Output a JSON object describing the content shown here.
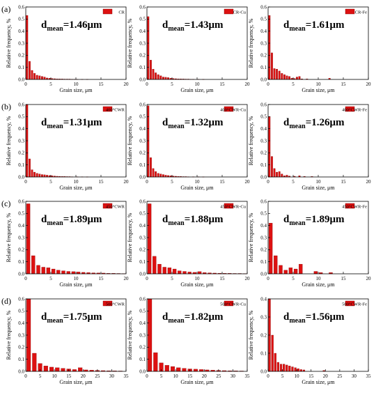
{
  "figure": {
    "row_labels": [
      "(a)",
      "(b)",
      "(c)",
      "(d)"
    ],
    "x_axis_label": "Grain size, μm",
    "y_axis_label": "Relative frequency, %"
  },
  "chart_data": [
    {
      "type": "bar",
      "row": 0,
      "col": 0,
      "legend": "CR",
      "annotation": {
        "prefix": "d",
        "sub": "mean",
        "value": "=1.46μm"
      },
      "xlim": [
        0,
        20
      ],
      "xticks": [
        0,
        5,
        10,
        15,
        20
      ],
      "ylim": [
        0,
        0.6
      ],
      "yticks": [
        0.0,
        0.1,
        0.2,
        0.3,
        0.4,
        0.5,
        0.6
      ],
      "x": [
        0.25,
        0.75,
        1.25,
        1.75,
        2.25,
        2.75,
        3.25,
        3.75,
        4.25,
        4.75,
        5.25,
        5.75,
        6.25,
        6.75,
        7.25,
        7.75,
        8.25,
        8.75,
        9.25,
        9.75,
        10.25,
        11.25,
        12.25
      ],
      "values": [
        0.53,
        0.15,
        0.075,
        0.05,
        0.035,
        0.03,
        0.025,
        0.02,
        0.012,
        0.01,
        0.008,
        0.006,
        0.005,
        0.004,
        0.004,
        0.003,
        0.003,
        0.003,
        0.002,
        0.002,
        0.002,
        0.001,
        0.001
      ]
    },
    {
      "type": "bar",
      "row": 0,
      "col": 1,
      "legend": "CR-Cu",
      "annotation": {
        "prefix": "d",
        "sub": "mean",
        "value": "=1.43μm"
      },
      "xlim": [
        0,
        20
      ],
      "xticks": [
        0,
        5,
        10,
        15,
        20
      ],
      "ylim": [
        0,
        0.6
      ],
      "yticks": [
        0.0,
        0.1,
        0.2,
        0.3,
        0.4,
        0.5,
        0.6
      ],
      "x": [
        0.25,
        0.75,
        1.25,
        1.75,
        2.25,
        2.75,
        3.25,
        3.75,
        4.25,
        4.75,
        5.25,
        5.75,
        6.25,
        6.75,
        7.25,
        7.75,
        8.25,
        8.75,
        9.25,
        10.25,
        11.25
      ],
      "values": [
        0.52,
        0.16,
        0.085,
        0.055,
        0.04,
        0.03,
        0.02,
        0.018,
        0.015,
        0.01,
        0.008,
        0.006,
        0.005,
        0.004,
        0.004,
        0.003,
        0.003,
        0.002,
        0.002,
        0.002,
        0.001
      ]
    },
    {
      "type": "bar",
      "row": 0,
      "col": 2,
      "legend": "CR-Fe",
      "annotation": {
        "prefix": "d",
        "sub": "mean",
        "value": "=1.61μm"
      },
      "xlim": [
        0,
        20
      ],
      "xticks": [
        0,
        5,
        10,
        15,
        20
      ],
      "ylim": [
        0,
        0.6
      ],
      "yticks": [
        0.0,
        0.1,
        0.2,
        0.3,
        0.4,
        0.5,
        0.6
      ],
      "x": [
        0.25,
        0.75,
        1.25,
        1.75,
        2.25,
        2.75,
        3.25,
        3.75,
        4.25,
        4.75,
        5.25,
        5.75,
        6.25,
        6.75,
        7.75,
        12.25
      ],
      "values": [
        0.53,
        0.22,
        0.09,
        0.085,
        0.07,
        0.05,
        0.04,
        0.03,
        0.025,
        0.01,
        0.008,
        0.02,
        0.025,
        0.005,
        0.005,
        0.01
      ]
    },
    {
      "type": "bar",
      "row": 1,
      "col": 0,
      "legend": "400°CWR",
      "annotation": {
        "prefix": "d",
        "sub": "mean",
        "value": "=1.31μm"
      },
      "xlim": [
        0,
        20
      ],
      "xticks": [
        0,
        5,
        10,
        15,
        20
      ],
      "ylim": [
        0,
        0.6
      ],
      "yticks": [
        0.0,
        0.1,
        0.2,
        0.3,
        0.4,
        0.5,
        0.6
      ],
      "x": [
        0.25,
        0.75,
        1.25,
        1.75,
        2.25,
        2.75,
        3.25,
        3.75,
        4.25,
        4.75,
        5.25,
        5.75,
        6.25,
        6.75,
        7.25,
        7.75,
        8.25,
        8.75,
        9.25,
        10.25,
        11.25,
        12.25
      ],
      "values": [
        0.6,
        0.15,
        0.06,
        0.04,
        0.03,
        0.025,
        0.02,
        0.018,
        0.015,
        0.012,
        0.01,
        0.008,
        0.006,
        0.005,
        0.004,
        0.004,
        0.003,
        0.003,
        0.002,
        0.002,
        0.002,
        0.001
      ]
    },
    {
      "type": "bar",
      "row": 1,
      "col": 1,
      "legend": "400°CWR-Cu",
      "annotation": {
        "prefix": "d",
        "sub": "mean",
        "value": "=1.32μm"
      },
      "xlim": [
        0,
        20
      ],
      "xticks": [
        0,
        5,
        10,
        15,
        20
      ],
      "ylim": [
        0,
        0.6
      ],
      "yticks": [
        0.0,
        0.1,
        0.2,
        0.3,
        0.4,
        0.5,
        0.6
      ],
      "x": [
        0.25,
        0.75,
        1.25,
        1.75,
        2.25,
        2.75,
        3.25,
        3.75,
        4.25,
        4.75,
        5.25,
        5.75,
        6.25,
        6.75,
        7.25,
        7.75,
        8.25,
        9.25,
        10.25,
        11.25
      ],
      "values": [
        0.59,
        0.16,
        0.07,
        0.045,
        0.03,
        0.025,
        0.02,
        0.015,
        0.012,
        0.01,
        0.008,
        0.006,
        0.005,
        0.004,
        0.003,
        0.003,
        0.002,
        0.002,
        0.002,
        0.001
      ]
    },
    {
      "type": "bar",
      "row": 1,
      "col": 2,
      "legend": "400°CWR-Fe",
      "annotation": {
        "prefix": "d",
        "sub": "mean",
        "value": "=1.26μm"
      },
      "xlim": [
        0,
        20
      ],
      "xticks": [
        0,
        5,
        10,
        15,
        20
      ],
      "ylim": [
        0,
        0.6
      ],
      "yticks": [
        0.0,
        0.1,
        0.2,
        0.3,
        0.4,
        0.5,
        0.6
      ],
      "x": [
        0.25,
        0.75,
        1.25,
        1.75,
        2.25,
        2.75,
        3.25,
        3.75,
        4.25,
        5.25,
        6.25,
        7.25,
        8.75
      ],
      "values": [
        0.5,
        0.17,
        0.07,
        0.04,
        0.045,
        0.025,
        0.01,
        0.015,
        0.008,
        0.006,
        0.01,
        0.005,
        0.004
      ]
    },
    {
      "type": "bar",
      "row": 2,
      "col": 0,
      "legend": "450°CWR",
      "annotation": {
        "prefix": "d",
        "sub": "mean",
        "value": "=1.89μm"
      },
      "xlim": [
        0,
        20
      ],
      "xticks": [
        0,
        5,
        10,
        15,
        20
      ],
      "ylim": [
        0,
        0.6
      ],
      "yticks": [
        0.0,
        0.1,
        0.2,
        0.3,
        0.4,
        0.5,
        0.6
      ],
      "x": [
        0.5,
        1.5,
        2.5,
        3.5,
        4.5,
        5.5,
        6.5,
        7.5,
        8.5,
        9.5,
        10.5,
        11.5,
        12.5,
        13.5,
        14.5,
        15.5,
        16.5,
        17.5,
        18.5,
        19.5
      ],
      "values": [
        0.58,
        0.15,
        0.07,
        0.055,
        0.05,
        0.04,
        0.03,
        0.025,
        0.02,
        0.018,
        0.015,
        0.012,
        0.01,
        0.008,
        0.007,
        0.006,
        0.004,
        0.004,
        0.003,
        0.002
      ]
    },
    {
      "type": "bar",
      "row": 2,
      "col": 1,
      "legend": "450°CWR-Cu",
      "annotation": {
        "prefix": "d",
        "sub": "mean",
        "value": "=1.88μm"
      },
      "xlim": [
        0,
        20
      ],
      "xticks": [
        0,
        5,
        10,
        15,
        20
      ],
      "ylim": [
        0,
        0.6
      ],
      "yticks": [
        0.0,
        0.1,
        0.2,
        0.3,
        0.4,
        0.5,
        0.6
      ],
      "x": [
        0.5,
        1.5,
        2.5,
        3.5,
        4.5,
        5.5,
        6.5,
        7.5,
        8.5,
        9.5,
        10.5,
        11.5,
        12.5,
        13.5,
        14.5,
        15.5,
        16.5,
        17.5,
        18.5,
        19.5
      ],
      "values": [
        0.58,
        0.145,
        0.08,
        0.055,
        0.05,
        0.04,
        0.025,
        0.02,
        0.015,
        0.012,
        0.018,
        0.01,
        0.008,
        0.006,
        0.005,
        0.004,
        0.004,
        0.003,
        0.003,
        0.002
      ]
    },
    {
      "type": "bar",
      "row": 2,
      "col": 2,
      "legend": "450°CWR-Fe",
      "annotation": {
        "prefix": "d",
        "sub": "mean",
        "value": "=1.89μm"
      },
      "xlim": [
        0,
        20
      ],
      "xticks": [
        0,
        5,
        10,
        15,
        20
      ],
      "ylim": [
        0,
        0.6
      ],
      "yticks": [
        0.0,
        0.1,
        0.2,
        0.3,
        0.4,
        0.5,
        0.6
      ],
      "x": [
        0.5,
        1.5,
        2.5,
        3.5,
        4.5,
        5.5,
        6.5,
        9.5,
        10.5,
        12.5
      ],
      "values": [
        0.42,
        0.15,
        0.07,
        0.03,
        0.05,
        0.04,
        0.08,
        0.02,
        0.01,
        0.01
      ]
    },
    {
      "type": "bar",
      "row": 3,
      "col": 0,
      "legend": "500°CWR",
      "annotation": {
        "prefix": "d",
        "sub": "mean",
        "value": "=1.75μm"
      },
      "xlim": [
        0,
        35
      ],
      "xticks": [
        0,
        5,
        10,
        15,
        20,
        25,
        30,
        35
      ],
      "ylim": [
        0,
        0.6
      ],
      "yticks": [
        0.0,
        0.1,
        0.2,
        0.3,
        0.4,
        0.5,
        0.6
      ],
      "x": [
        1,
        3,
        5,
        7,
        9,
        11,
        13,
        15,
        17,
        19,
        21,
        23,
        25,
        27,
        29,
        31,
        33
      ],
      "values": [
        0.63,
        0.15,
        0.065,
        0.045,
        0.035,
        0.03,
        0.025,
        0.02,
        0.015,
        0.03,
        0.012,
        0.01,
        0.008,
        0.006,
        0.005,
        0.004,
        0.003
      ]
    },
    {
      "type": "bar",
      "row": 3,
      "col": 1,
      "legend": "500°CWR-Cu",
      "annotation": {
        "prefix": "d",
        "sub": "mean",
        "value": "=1.82μm"
      },
      "xlim": [
        0,
        35
      ],
      "xticks": [
        0,
        5,
        10,
        15,
        20,
        25,
        30,
        35
      ],
      "ylim": [
        0,
        0.6
      ],
      "yticks": [
        0.0,
        0.1,
        0.2,
        0.3,
        0.4,
        0.5,
        0.6
      ],
      "x": [
        1,
        3,
        5,
        7,
        9,
        11,
        13,
        15,
        17,
        19,
        21,
        23,
        25,
        27,
        29,
        31,
        33
      ],
      "values": [
        0.61,
        0.155,
        0.07,
        0.05,
        0.04,
        0.03,
        0.025,
        0.02,
        0.018,
        0.015,
        0.012,
        0.01,
        0.008,
        0.006,
        0.005,
        0.004,
        0.003
      ]
    },
    {
      "type": "bar",
      "row": 3,
      "col": 2,
      "legend": "500°CWR-Fe",
      "annotation": {
        "prefix": "d",
        "sub": "mean",
        "value": "=1.56μm"
      },
      "xlim": [
        0,
        35
      ],
      "xticks": [
        0,
        5,
        10,
        15,
        20,
        25,
        30,
        35
      ],
      "ylim": [
        0,
        0.4
      ],
      "yticks": [
        0.0,
        0.1,
        0.2,
        0.3,
        0.4
      ],
      "x": [
        0.5,
        1.5,
        2.5,
        3.5,
        4.5,
        5.5,
        6.5,
        7.5,
        8.5,
        9.5,
        10.5,
        11.5,
        12.5,
        19.5
      ],
      "values": [
        0.42,
        0.2,
        0.1,
        0.05,
        0.04,
        0.04,
        0.035,
        0.03,
        0.025,
        0.02,
        0.015,
        0.01,
        0.008,
        0.005
      ]
    }
  ],
  "colors": {
    "bar_fill": "#dd1111",
    "bar_stroke": "#7a0000",
    "axis": "#000000"
  }
}
